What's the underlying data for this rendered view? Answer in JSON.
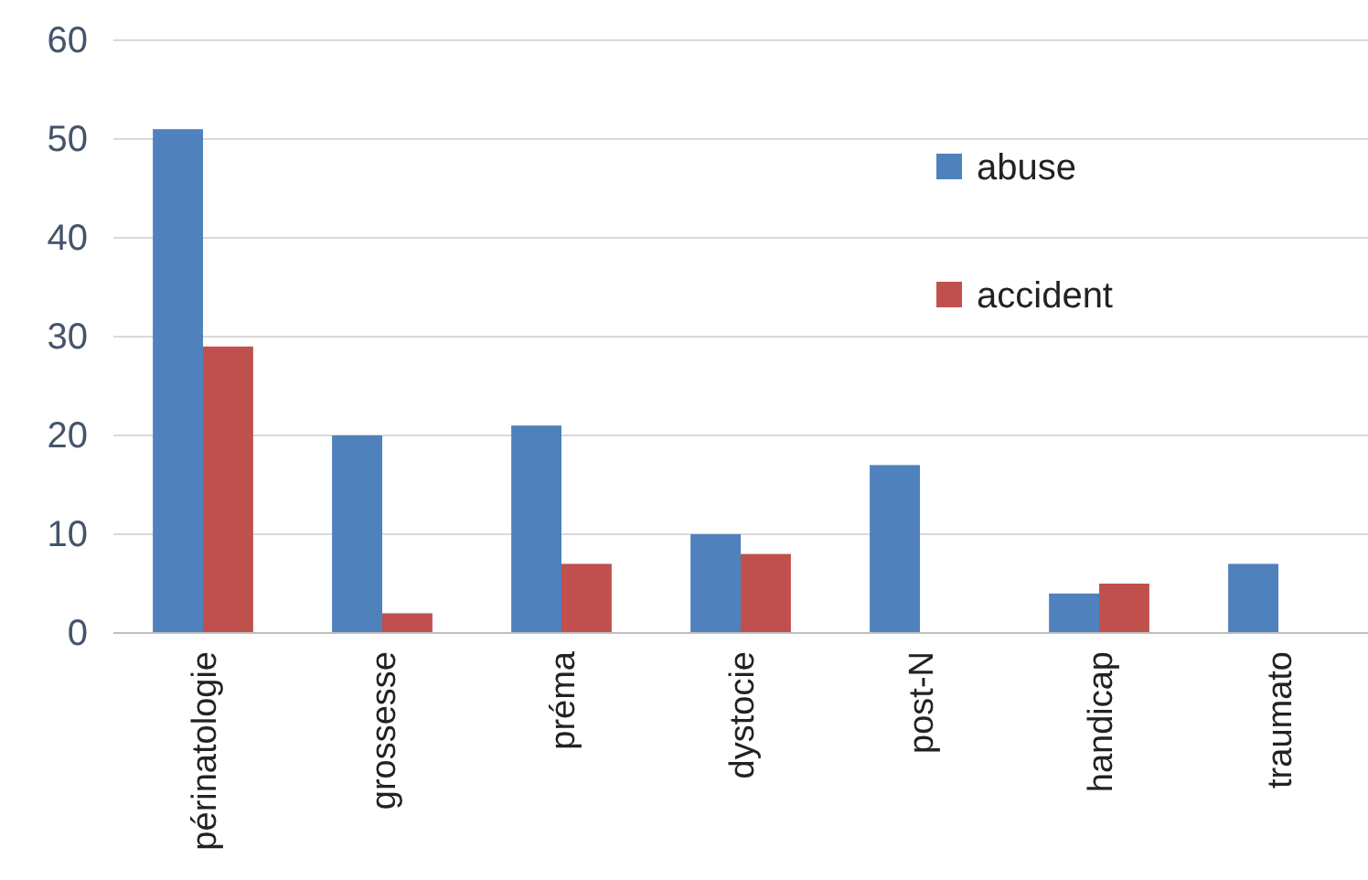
{
  "chart_data": {
    "type": "bar",
    "categories": [
      "périnatologie",
      "grossesse",
      "préma",
      "dystocie",
      "post-N",
      "handicap",
      "traumato"
    ],
    "series": [
      {
        "name": "abuse",
        "color": "#4f81bd",
        "values": [
          51,
          20,
          21,
          10,
          17,
          4,
          7
        ]
      },
      {
        "name": "accident",
        "color": "#c0504d",
        "values": [
          29,
          2,
          7,
          8,
          0,
          5,
          0
        ]
      }
    ],
    "ylim": [
      0,
      60
    ],
    "yticks": [
      0,
      10,
      20,
      30,
      40,
      50,
      60
    ],
    "grid": "y",
    "legend": "top right"
  }
}
